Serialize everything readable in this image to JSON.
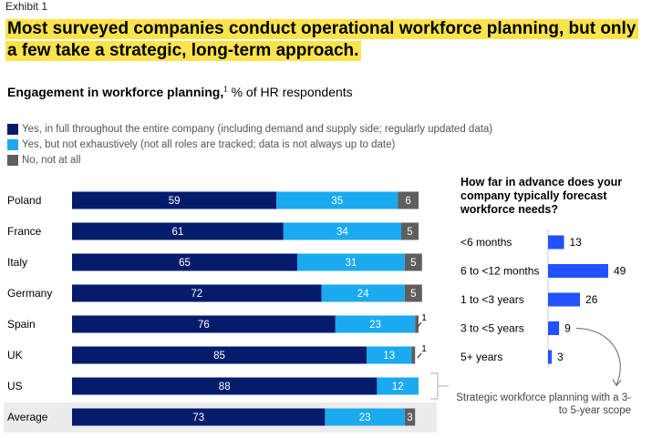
{
  "exhibit": "Exhibit 1",
  "headline": "Most surveyed companies conduct operational workforce planning, but only a few take a strategic, long-term approach.",
  "subtitle": {
    "bold": "Engagement in workforce planning,",
    "sup": "1",
    "rest": " % of HR respondents"
  },
  "legend": [
    {
      "label": "Yes, in full throughout the entire company (including demand and supply side; regularly updated data)",
      "color": "#051c6c"
    },
    {
      "label": "Yes, but not exhaustively (not all roles are tracked; data is not always up to date)",
      "color": "#1ba9ef"
    },
    {
      "label": "No, not at all",
      "color": "#5e5e5e"
    }
  ],
  "chart_data": [
    {
      "type": "bar",
      "orientation": "horizontal",
      "stacked": true,
      "categories": [
        "Poland",
        "France",
        "Italy",
        "Germany",
        "Spain",
        "UK",
        "US",
        "Average"
      ],
      "series": [
        {
          "name": "Yes, in full throughout the entire company (including demand and supply side; regularly updated data)",
          "color": "#051c6c",
          "values": [
            59,
            61,
            65,
            72,
            76,
            85,
            88,
            73
          ]
        },
        {
          "name": "Yes, but not exhaustively (not all roles are tracked; data is not always up to date)",
          "color": "#1ba9ef",
          "values": [
            35,
            34,
            31,
            24,
            23,
            13,
            12,
            23
          ]
        },
        {
          "name": "No, not at all",
          "color": "#5e5e5e",
          "values": [
            6,
            5,
            5,
            5,
            1,
            1,
            0,
            3
          ]
        }
      ],
      "xlim": [
        0,
        100
      ],
      "callout_labels": {
        "Spain": "1",
        "UK": "1"
      },
      "highlight": "Average"
    },
    {
      "type": "bar",
      "orientation": "horizontal",
      "title": "How far in advance does your company typically forecast workforce needs?",
      "categories": [
        "<6 months",
        "6 to <12 months",
        "1 to <3 years",
        "3 to <5 years",
        "5+ years"
      ],
      "values": [
        13,
        49,
        26,
        9,
        3
      ],
      "color": "#2251ff",
      "annotation": "Strategic workforce planning with a 3- to 5-year scope"
    }
  ]
}
